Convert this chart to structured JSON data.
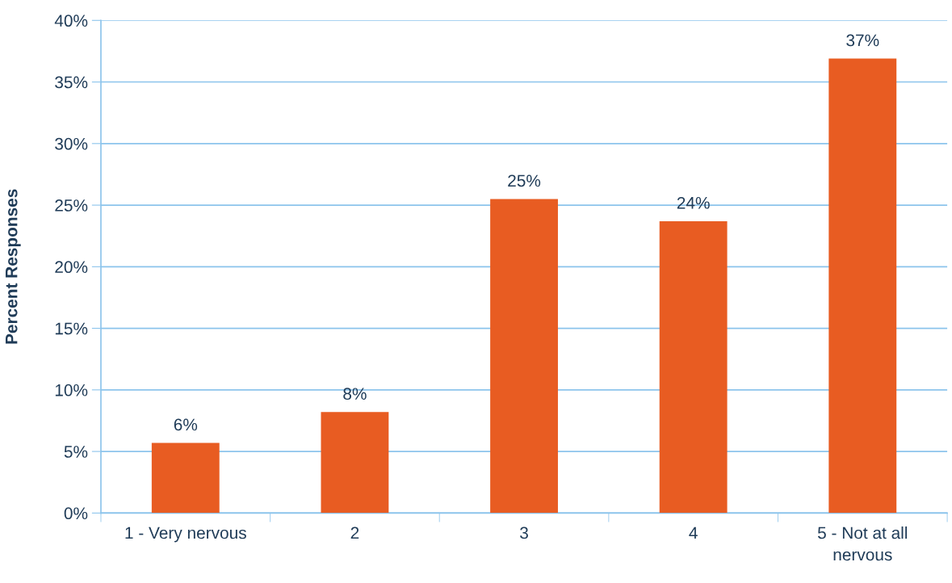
{
  "chart_data": {
    "type": "bar",
    "ylabel": "Percent Responses",
    "categories": [
      "1 - Very nervous",
      "2",
      "3",
      "4",
      "5 - Not at all\nnervous"
    ],
    "values": [
      5.7,
      8.2,
      25.5,
      23.7,
      36.9
    ],
    "value_labels": [
      "6%",
      "8%",
      "25%",
      "24%",
      "37%"
    ],
    "color": "#e85c22",
    "ylim": [
      0,
      40
    ],
    "yticks": [
      {
        "value": 0,
        "label": "0%"
      },
      {
        "value": 5,
        "label": "5%"
      },
      {
        "value": 10,
        "label": "10%"
      },
      {
        "value": 15,
        "label": "15%"
      },
      {
        "value": 20,
        "label": "20%"
      },
      {
        "value": 25,
        "label": "25%"
      },
      {
        "value": 30,
        "label": "30%"
      },
      {
        "value": 35,
        "label": "35%"
      },
      {
        "value": 40,
        "label": "40%"
      }
    ],
    "grid": "y"
  }
}
